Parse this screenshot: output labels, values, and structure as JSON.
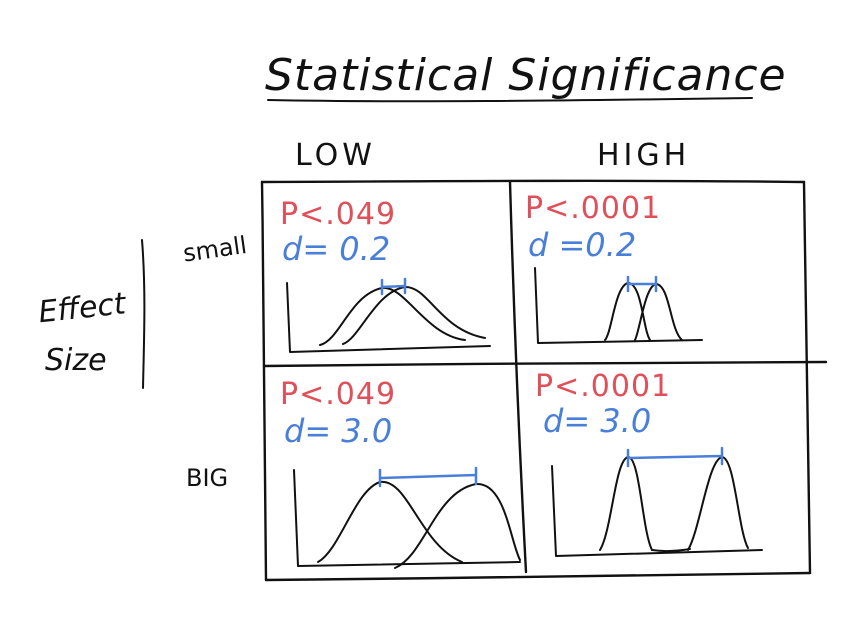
{
  "title": "Statistical Significance",
  "columns": [
    "LOW",
    "HIGH"
  ],
  "rows": [
    "small",
    "BIG"
  ],
  "row_axis_label_line1": "Effect",
  "row_axis_label_line2": "Size",
  "colors": {
    "ink": "#111111",
    "p_value": "#e0505a",
    "effect_size": "#4a7fd9"
  },
  "cells": [
    {
      "significance": "LOW",
      "effect": "small",
      "p": "P<.049",
      "d": "d= 0.2"
    },
    {
      "significance": "HIGH",
      "effect": "small",
      "p": "P<.0001",
      "d": "d =0.2"
    },
    {
      "significance": "LOW",
      "effect": "BIG",
      "p": "P<.049",
      "d": "d= 3.0"
    },
    {
      "significance": "HIGH",
      "effect": "BIG",
      "p": "P<.0001",
      "d": "d= 3.0"
    }
  ]
}
